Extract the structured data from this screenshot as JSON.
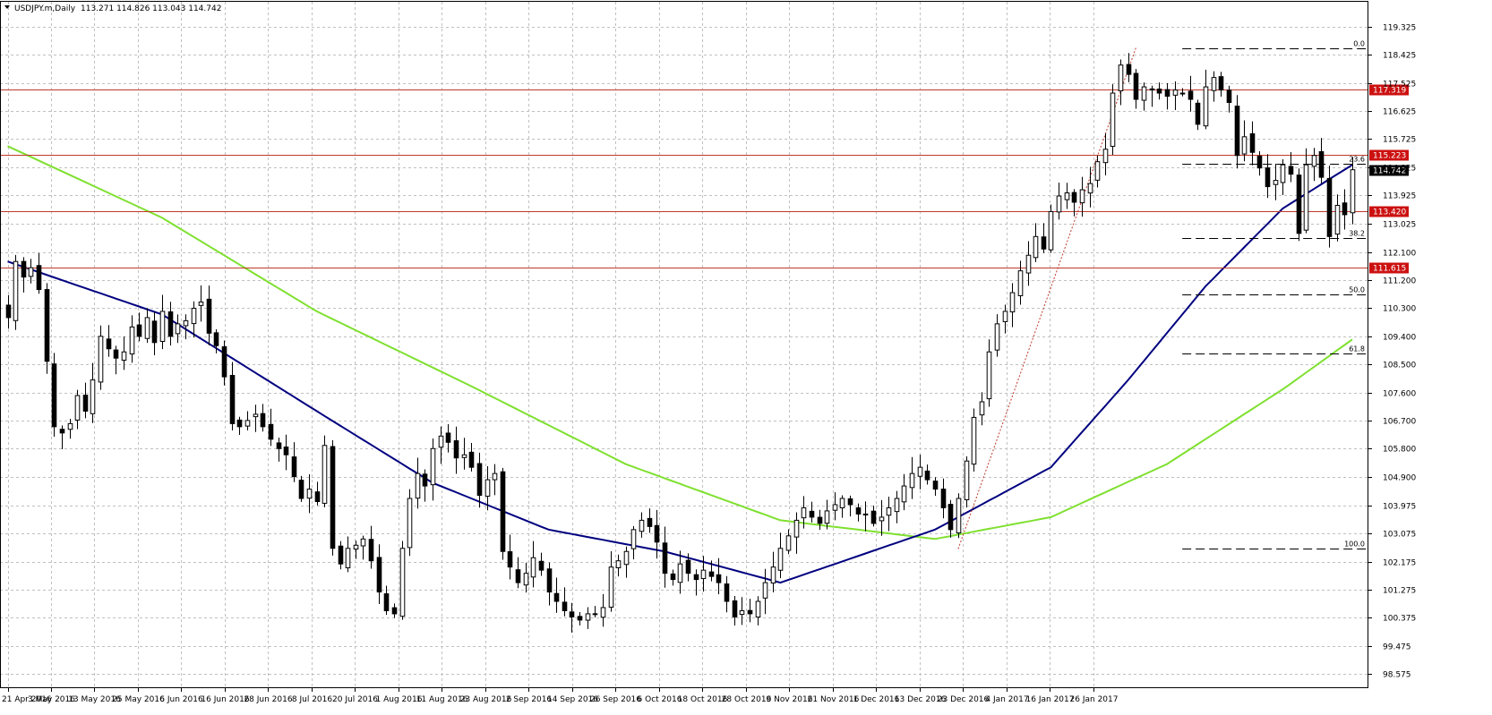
{
  "header": {
    "symbol": "USDJPY.m,Daily",
    "ohlc": "113.271 114.826 113.043 114.742"
  },
  "colors": {
    "background": "#ffffff",
    "grid": "#c0c0c0",
    "candle_bull": "#ffffff",
    "candle_bear": "#000000",
    "candle_outline": "#000000",
    "ma_fast": "#000080",
    "ma_slow": "#7fe030",
    "level_line": "#c0392b",
    "level_tag": "#cc1111",
    "current_tag": "#000000",
    "fib_line": "#000000",
    "trend_line": "#c0392b"
  },
  "chart_data": {
    "type": "candlestick",
    "symbol": "USDJPY.m",
    "timeframe": "Daily",
    "ylim": [
      98.575,
      119.325
    ],
    "y_ticks": [
      "119.325",
      "118.425",
      "117.525",
      "116.625",
      "115.725",
      "114.825",
      "113.925",
      "113.025",
      "112.100",
      "111.200",
      "110.300",
      "109.400",
      "108.500",
      "107.600",
      "106.700",
      "105.800",
      "104.900",
      "103.975",
      "103.075",
      "102.175",
      "101.275",
      "100.375",
      "99.475",
      "98.575"
    ],
    "x_tick_labels": [
      "21 Apr 2016",
      "3 May 2016",
      "13 May 2016",
      "25 May 2016",
      "6 Jun 2016",
      "16 Jun 2016",
      "28 Jun 2016",
      "8 Jul 2016",
      "20 Jul 2016",
      "1 Aug 2016",
      "11 Aug 2016",
      "23 Aug 2016",
      "2 Sep 2016",
      "14 Sep 2016",
      "26 Sep 2016",
      "6 Oct 2016",
      "18 Oct 2016",
      "28 Oct 2016",
      "9 Nov 2016",
      "21 Nov 2016",
      "1 Dec 2016",
      "13 Dec 2016",
      "23 Dec 2016",
      "4 Jan 2017",
      "16 Jan 2017",
      "26 Jan 2017"
    ],
    "x_tick_index": [
      0,
      8,
      16,
      24,
      32,
      40,
      48,
      56,
      64,
      72,
      80,
      88,
      96,
      104,
      112,
      120,
      128,
      136,
      144,
      152,
      160,
      168,
      176,
      184,
      192,
      200
    ],
    "num_bars": 201,
    "close_anchors": [
      [
        0,
        110.0
      ],
      [
        1,
        111.8
      ],
      [
        2,
        111.3
      ],
      [
        3,
        111.6
      ],
      [
        4,
        110.9
      ],
      [
        5,
        108.6
      ],
      [
        6,
        106.5
      ],
      [
        7,
        106.3
      ],
      [
        8,
        106.6
      ],
      [
        9,
        107.5
      ],
      [
        10,
        107.0
      ],
      [
        11,
        108.0
      ],
      [
        12,
        109.4
      ],
      [
        13,
        109.0
      ],
      [
        14,
        108.7
      ],
      [
        15,
        108.9
      ],
      [
        16,
        109.7
      ],
      [
        17,
        109.4
      ],
      [
        18,
        110.0
      ],
      [
        19,
        109.2
      ],
      [
        20,
        110.2
      ],
      [
        21,
        109.4
      ],
      [
        22,
        109.8
      ],
      [
        23,
        109.9
      ],
      [
        24,
        110.3
      ],
      [
        25,
        110.5
      ],
      [
        26,
        109.5
      ],
      [
        27,
        109.1
      ],
      [
        28,
        108.1
      ],
      [
        29,
        106.6
      ],
      [
        30,
        106.5
      ],
      [
        31,
        106.7
      ],
      [
        32,
        106.9
      ],
      [
        33,
        106.5
      ],
      [
        34,
        106.1
      ],
      [
        35,
        105.8
      ],
      [
        36,
        105.6
      ],
      [
        37,
        104.9
      ],
      [
        38,
        104.2
      ],
      [
        39,
        104.5
      ],
      [
        40,
        104.1
      ],
      [
        41,
        105.9
      ],
      [
        42,
        102.6
      ],
      [
        43,
        102.1
      ],
      [
        44,
        102.6
      ],
      [
        45,
        102.7
      ],
      [
        46,
        102.9
      ],
      [
        47,
        102.2
      ],
      [
        48,
        101.2
      ],
      [
        49,
        100.6
      ],
      [
        50,
        100.5
      ],
      [
        51,
        102.6
      ],
      [
        52,
        104.2
      ],
      [
        53,
        105.0
      ],
      [
        54,
        104.6
      ],
      [
        55,
        105.8
      ],
      [
        56,
        106.2
      ],
      [
        57,
        106.0
      ],
      [
        58,
        105.5
      ],
      [
        59,
        105.6
      ],
      [
        60,
        105.2
      ],
      [
        61,
        104.3
      ],
      [
        62,
        104.8
      ],
      [
        63,
        105.0
      ],
      [
        64,
        102.5
      ],
      [
        65,
        102.0
      ],
      [
        66,
        101.5
      ],
      [
        67,
        101.8
      ],
      [
        68,
        102.3
      ],
      [
        69,
        101.9
      ],
      [
        70,
        101.2
      ],
      [
        71,
        100.9
      ],
      [
        72,
        100.6
      ],
      [
        73,
        100.4
      ],
      [
        74,
        100.3
      ],
      [
        75,
        100.5
      ],
      [
        76,
        100.5
      ],
      [
        77,
        100.7
      ],
      [
        78,
        102.0
      ],
      [
        79,
        102.2
      ],
      [
        80,
        102.5
      ],
      [
        81,
        103.2
      ],
      [
        82,
        103.5
      ],
      [
        83,
        103.3
      ],
      [
        84,
        102.8
      ],
      [
        85,
        101.8
      ],
      [
        86,
        101.6
      ],
      [
        87,
        102.1
      ],
      [
        88,
        101.8
      ],
      [
        89,
        101.6
      ],
      [
        90,
        101.9
      ],
      [
        91,
        101.7
      ],
      [
        92,
        101.5
      ],
      [
        93,
        100.9
      ],
      [
        94,
        100.4
      ],
      [
        95,
        100.6
      ],
      [
        96,
        100.5
      ],
      [
        97,
        100.9
      ],
      [
        98,
        101.5
      ],
      [
        99,
        102.0
      ],
      [
        100,
        102.6
      ],
      [
        101,
        103.0
      ],
      [
        102,
        103.5
      ],
      [
        103,
        103.9
      ],
      [
        104,
        103.6
      ],
      [
        105,
        103.4
      ],
      [
        106,
        103.8
      ],
      [
        107,
        104.0
      ],
      [
        108,
        104.2
      ],
      [
        109,
        104.0
      ],
      [
        110,
        103.7
      ],
      [
        111,
        103.7
      ],
      [
        112,
        103.4
      ],
      [
        113,
        103.6
      ],
      [
        114,
        103.9
      ],
      [
        115,
        104.2
      ],
      [
        116,
        104.6
      ],
      [
        117,
        105.0
      ],
      [
        118,
        105.2
      ],
      [
        119,
        104.8
      ],
      [
        120,
        104.5
      ],
      [
        121,
        103.9
      ],
      [
        122,
        103.2
      ],
      [
        123,
        104.2
      ],
      [
        124,
        105.4
      ],
      [
        125,
        106.8
      ],
      [
        126,
        107.3
      ],
      [
        127,
        108.9
      ],
      [
        128,
        109.8
      ],
      [
        129,
        110.2
      ],
      [
        130,
        110.8
      ],
      [
        131,
        111.5
      ],
      [
        132,
        112.0
      ],
      [
        133,
        112.6
      ],
      [
        134,
        112.2
      ],
      [
        135,
        113.4
      ],
      [
        136,
        113.9
      ],
      [
        137,
        114.0
      ],
      [
        138,
        113.7
      ],
      [
        139,
        114.1
      ],
      [
        140,
        114.3
      ],
      [
        141,
        115.0
      ],
      [
        142,
        115.4
      ],
      [
        143,
        117.2
      ],
      [
        144,
        118.1
      ],
      [
        145,
        117.8
      ],
      [
        146,
        117.0
      ],
      [
        147,
        117.4
      ],
      [
        148,
        117.3
      ],
      [
        149,
        117.2
      ],
      [
        150,
        117.1
      ],
      [
        151,
        117.3
      ],
      [
        152,
        117.2
      ],
      [
        153,
        117.0
      ],
      [
        154,
        116.2
      ],
      [
        155,
        117.4
      ],
      [
        156,
        117.7
      ],
      [
        157,
        117.3
      ],
      [
        158,
        116.9
      ],
      [
        159,
        115.2
      ],
      [
        160,
        115.8
      ],
      [
        161,
        115.3
      ],
      [
        162,
        114.8
      ],
      [
        163,
        114.2
      ],
      [
        164,
        114.4
      ],
      [
        165,
        114.9
      ],
      [
        166,
        114.6
      ],
      [
        167,
        112.7
      ],
      [
        168,
        114.9
      ],
      [
        169,
        115.2
      ],
      [
        170,
        114.5
      ],
      [
        171,
        112.6
      ],
      [
        172,
        113.6
      ],
      [
        173,
        113.3
      ],
      [
        174,
        114.742
      ]
    ],
    "ma_fast_anchors": [
      [
        0,
        111.8
      ],
      [
        20,
        110.1
      ],
      [
        40,
        107.0
      ],
      [
        55,
        104.7
      ],
      [
        70,
        103.2
      ],
      [
        85,
        102.5
      ],
      [
        100,
        101.5
      ],
      [
        120,
        103.2
      ],
      [
        135,
        105.2
      ],
      [
        145,
        108.0
      ],
      [
        155,
        111.0
      ],
      [
        165,
        113.5
      ],
      [
        174,
        114.9
      ]
    ],
    "ma_slow_anchors": [
      [
        0,
        115.5
      ],
      [
        20,
        113.2
      ],
      [
        40,
        110.2
      ],
      [
        60,
        107.8
      ],
      [
        80,
        105.3
      ],
      [
        100,
        103.5
      ],
      [
        120,
        102.9
      ],
      [
        135,
        103.6
      ],
      [
        150,
        105.3
      ],
      [
        165,
        107.7
      ],
      [
        174,
        109.3
      ]
    ],
    "horizontal_levels": [
      {
        "label": "117.319",
        "value": 117.319
      },
      {
        "label": "115.223",
        "value": 115.223
      },
      {
        "label": "113.420",
        "value": 113.42
      },
      {
        "label": "111.615",
        "value": 111.615
      }
    ],
    "current_price": {
      "label": "114.742",
      "value": 114.742
    },
    "fibonacci": {
      "start_index": 152,
      "levels": [
        {
          "label": "0.0",
          "value": 118.65
        },
        {
          "label": "23.6",
          "value": 114.93
        },
        {
          "label": "38.2",
          "value": 112.56
        },
        {
          "label": "50.0",
          "value": 110.73
        },
        {
          "label": "61.8",
          "value": 108.84
        },
        {
          "label": "100.0",
          "value": 102.58
        }
      ]
    },
    "trend_line": {
      "from": [
        123,
        102.58
      ],
      "to": [
        146,
        118.65
      ]
    }
  }
}
